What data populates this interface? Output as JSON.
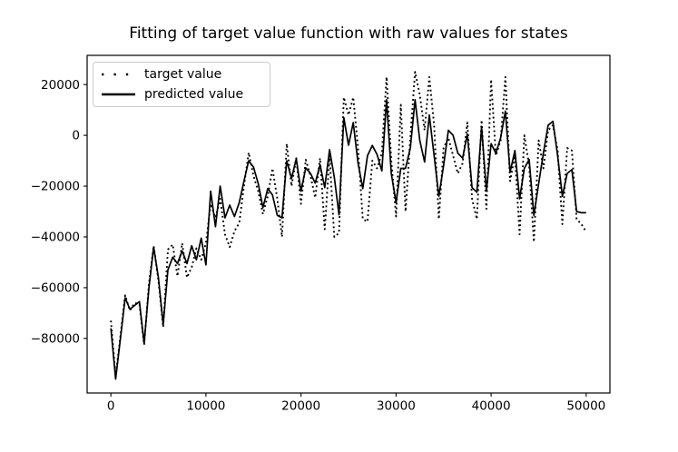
{
  "chart_data": {
    "type": "line",
    "title": "Fitting of target value function with raw values for states",
    "xlabel": "",
    "ylabel": "",
    "x_ticks": [
      0,
      10000,
      20000,
      30000,
      40000,
      50000
    ],
    "y_ticks": [
      20000,
      0,
      -20000,
      -40000,
      -60000,
      -80000
    ],
    "xlim": [
      -2500,
      52500
    ],
    "ylim": [
      -101500,
      31500
    ],
    "grid": false,
    "legend_position": "upper left",
    "line_color": "#000000",
    "background_color": "#ffffff",
    "x_start": 0,
    "x_step": 500,
    "x_count": 101,
    "series": [
      {
        "name": "target value",
        "style": "dotted",
        "values": [
          -73000,
          -95000,
          -79000,
          -63000,
          -69000,
          -66000,
          -66500,
          -82500,
          -58500,
          -43500,
          -57000,
          -75500,
          -45000,
          -43000,
          -55500,
          -42500,
          -56000,
          -52000,
          -44500,
          -49000,
          -42500,
          -27000,
          -32500,
          -25000,
          -39000,
          -44000,
          -37800,
          -34500,
          -20000,
          -6800,
          -16000,
          -22000,
          -31000,
          -24000,
          -13000,
          -25000,
          -40000,
          -3300,
          -20000,
          -9000,
          -27000,
          -9600,
          -16000,
          -24600,
          -9000,
          -37000,
          -8000,
          -40000,
          -38500,
          15000,
          8000,
          15000,
          -5000,
          -33000,
          -34000,
          -10000,
          -13000,
          -7000,
          23000,
          -10000,
          -32000,
          12000,
          -30000,
          -1000,
          25000,
          16000,
          2000,
          23000,
          4000,
          -33000,
          -5000,
          -1000,
          -8000,
          -15000,
          -11000,
          5000,
          -25000,
          -33000,
          6000,
          -29000,
          22000,
          -8000,
          -2000,
          23000,
          -18000,
          -8000,
          -39000,
          0,
          -12000,
          -42000,
          -2000,
          -13000,
          2000,
          4000,
          -6000,
          -35000,
          -5000,
          -6000,
          -33000,
          -35000,
          -38000
        ]
      },
      {
        "name": "predicted value",
        "style": "solid",
        "values": [
          -76000,
          -96000,
          -80000,
          -64000,
          -68500,
          -67000,
          -65500,
          -82000,
          -60000,
          -44000,
          -56000,
          -74500,
          -53000,
          -48000,
          -50500,
          -45500,
          -50500,
          -43500,
          -49000,
          -40500,
          -51000,
          -22000,
          -36000,
          -20000,
          -32500,
          -27500,
          -32000,
          -26500,
          -18000,
          -10000,
          -12500,
          -19000,
          -28500,
          -21000,
          -23500,
          -31500,
          -32500,
          -10000,
          -17000,
          -9200,
          -22000,
          -12800,
          -15000,
          -18800,
          -11600,
          -20600,
          -5700,
          -16400,
          -31300,
          7000,
          -3900,
          5000,
          -11000,
          -21000,
          -8000,
          -4000,
          -7500,
          -14000,
          14000,
          -15000,
          -26500,
          -13000,
          -13000,
          -5000,
          14000,
          -2000,
          -10500,
          8000,
          -8000,
          -24000,
          -12000,
          2000,
          0,
          -7000,
          -9000,
          500,
          -20600,
          -22400,
          3300,
          -22000,
          -3300,
          -7000,
          -1000,
          9500,
          -14500,
          -6000,
          -25000,
          -13000,
          -9500,
          -31500,
          -19000,
          -7000,
          4000,
          5500,
          -8000,
          -24000,
          -15000,
          -13500,
          -30000,
          -30500,
          -30500
        ]
      }
    ]
  }
}
